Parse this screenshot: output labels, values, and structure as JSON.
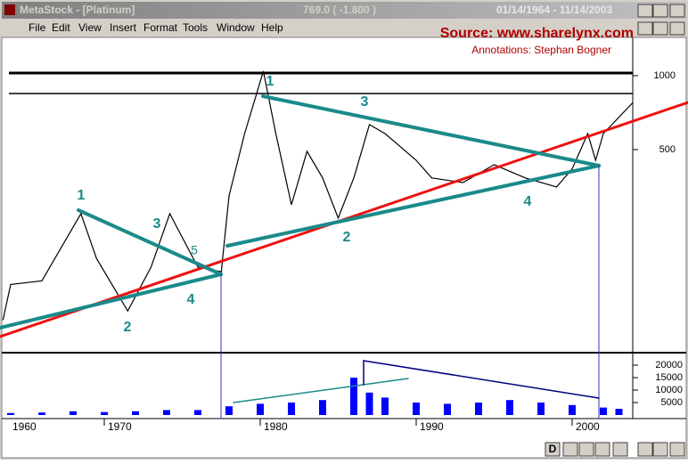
{
  "window": {
    "title": "MetaStock - [Platinum]",
    "quote": "769.0 ( -1.800 )",
    "dates": "01/14/1964 - 11/14/2003"
  },
  "menu": [
    "File",
    "Edit",
    "View",
    "Insert",
    "Format",
    "Tools",
    "Window",
    "Help"
  ],
  "source": "Source: www.sharelynx.com",
  "credit": "Annotations: Stephan Bogner",
  "wave_labels": [
    "1",
    "2",
    "3",
    "4",
    "5",
    "1",
    "3",
    "2",
    "4"
  ],
  "toolbar": {
    "period": "D"
  },
  "chart_data": [
    {
      "type": "line",
      "log_scale": true,
      "color": "#000000",
      "x": [
        1963.5,
        1964,
        1966,
        1968.5,
        1969.5,
        1971.5,
        1973,
        1974.2,
        1976,
        1977.5,
        1978,
        1979,
        1980.2,
        1981,
        1982,
        1983,
        1984,
        1985,
        1986,
        1987,
        1988,
        1989,
        1990,
        1991,
        1993,
        1995,
        1997,
        1999,
        2000,
        2001,
        2001.5,
        2002,
        2003.9
      ],
      "values": [
        101,
        141,
        146,
        274,
        180,
        110,
        166,
        274,
        166,
        159,
        324,
        581,
        1043,
        581,
        298,
        492,
        383,
        263,
        383,
        632,
        581,
        513,
        452,
        383,
        367,
        434,
        383,
        352,
        417,
        581,
        452,
        581,
        778
      ],
      "xlim": [
        1963.3,
        2004.2
      ],
      "xticks": [
        1960,
        1970,
        1980,
        1990,
        2000
      ],
      "ylim": [
        75,
        1432
      ],
      "yticks": [
        500,
        1000
      ]
    },
    {
      "type": "bar",
      "color": "#0000ff",
      "x": [
        1964,
        1966,
        1968,
        1970,
        1972,
        1974,
        1976,
        1978,
        1980,
        1982,
        1984,
        1986,
        1987,
        1988,
        1990,
        1992,
        1994,
        1996,
        1998,
        2000,
        2002,
        2003
      ],
      "values": [
        800,
        1000,
        1500,
        1200,
        1500,
        2000,
        2000,
        3500,
        4500,
        5000,
        6000,
        15000,
        9000,
        7000,
        5000,
        4500,
        5000,
        6000,
        5000,
        4000,
        3000,
        2500
      ],
      "xlim": [
        1963.3,
        2004.2
      ],
      "ylim": [
        0,
        24300
      ],
      "yticks": [
        5000,
        10000,
        15000,
        20000
      ]
    }
  ]
}
